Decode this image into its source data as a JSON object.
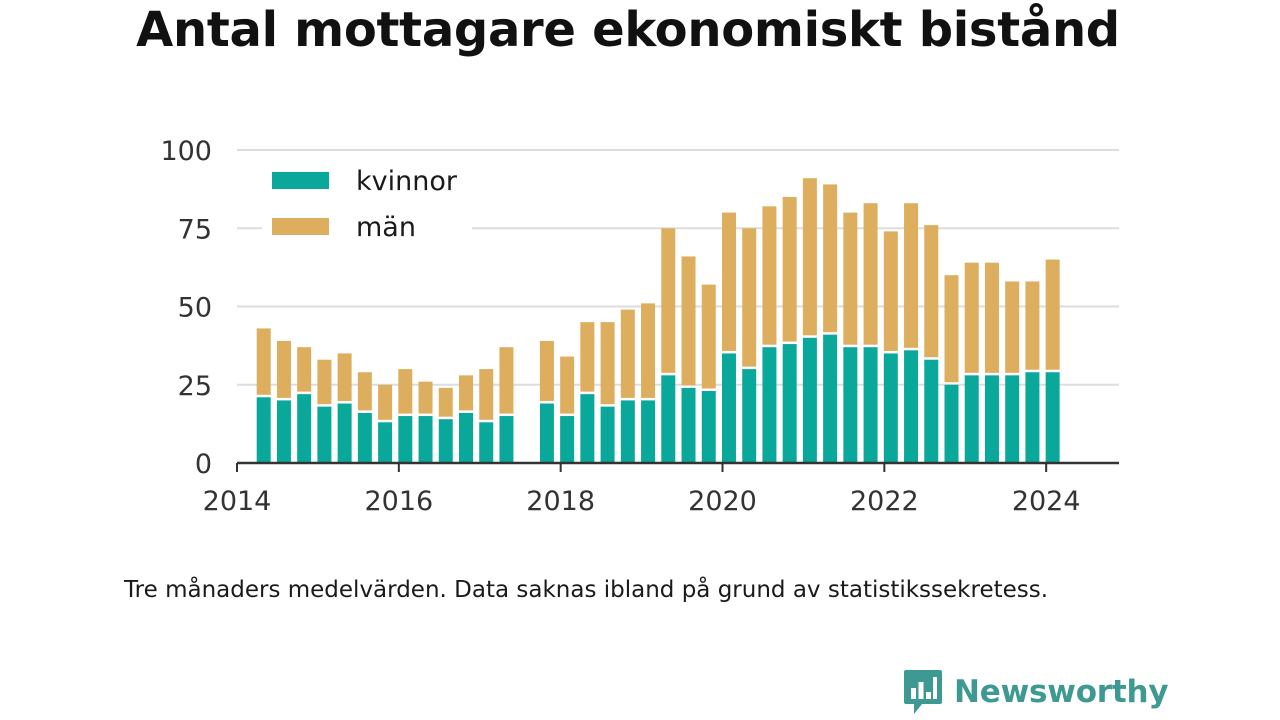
{
  "title": "Antal mottagare ekonomiskt bistånd",
  "caption": "Tre månaders medelvärden. Data saknas ibland på grund av statistikssekretess.",
  "brand": {
    "name": "Newsworthy",
    "logo_icon": "bar-chart-speech-bubble-icon"
  },
  "colors": {
    "kvinnor": "#0aa89b",
    "man": "#dcae5d",
    "grid": "#dddddd",
    "axis": "#333333",
    "brand": "#3d9991"
  },
  "chart_data": {
    "type": "bar",
    "stacked": true,
    "xlim": [
      2014,
      2024.9
    ],
    "ylim": [
      0,
      100
    ],
    "x_ticks": [
      "2014",
      "2016",
      "2018",
      "2020",
      "2022",
      "2024"
    ],
    "y_ticks": [
      "0",
      "25",
      "50",
      "75",
      "100"
    ],
    "grid": true,
    "legend_position": "top-left",
    "x": [
      2014.33,
      2014.58,
      2014.83,
      2015.08,
      2015.33,
      2015.58,
      2015.83,
      2016.08,
      2016.33,
      2016.58,
      2016.83,
      2017.08,
      2017.33,
      2017.83,
      2018.08,
      2018.33,
      2018.58,
      2018.83,
      2019.08,
      2019.33,
      2019.58,
      2019.83,
      2020.08,
      2020.33,
      2020.58,
      2020.83,
      2021.08,
      2021.33,
      2021.58,
      2021.83,
      2022.08,
      2022.33,
      2022.58,
      2022.83,
      2023.08,
      2023.33,
      2023.58,
      2023.83,
      2024.08
    ],
    "series": [
      {
        "name": "kvinnor",
        "values": [
          21,
          20,
          22,
          18,
          19,
          16,
          13,
          15,
          15,
          14,
          16,
          13,
          15,
          19,
          15,
          22,
          18,
          20,
          20,
          28,
          24,
          23,
          35,
          30,
          37,
          38,
          40,
          41,
          37,
          37,
          35,
          36,
          33,
          25,
          28,
          28,
          28,
          29,
          29
        ]
      },
      {
        "name": "män",
        "values": [
          22,
          19,
          15,
          15,
          16,
          13,
          12,
          15,
          11,
          10,
          12,
          17,
          22,
          20,
          19,
          23,
          27,
          29,
          31,
          47,
          42,
          34,
          45,
          45,
          45,
          47,
          51,
          48,
          43,
          46,
          39,
          47,
          43,
          35,
          36,
          36,
          30,
          29,
          36
        ]
      }
    ]
  }
}
